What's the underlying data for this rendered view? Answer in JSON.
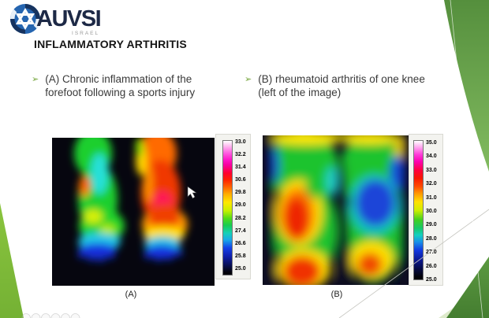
{
  "logo": {
    "brand": "AUVSI",
    "country": "ISRAEL",
    "star": "✡"
  },
  "title": "INFLAMMATORY ARTHRITIS",
  "bullet_marker": "➢",
  "bullets": [
    {
      "label": "(A) Chronic inflammation of the forefoot following a sports injury"
    },
    {
      "label": "(B) rheumatoid arthritis of one knee (left of the image)"
    }
  ],
  "figures": [
    {
      "caption": "(A)",
      "colorbar_ticks": [
        "33.0",
        "32.2",
        "31.4",
        "30.6",
        "29.8",
        "29.0",
        "28.2",
        "27.4",
        "26.6",
        "25.8",
        "25.0"
      ]
    },
    {
      "caption": "(B)",
      "colorbar_ticks": [
        "35.0",
        "34.0",
        "33.0",
        "32.0",
        "31.0",
        "30.0",
        "29.0",
        "28.0",
        "27.0",
        "26.0",
        "25.0"
      ]
    }
  ],
  "chart_data": [
    {
      "type": "heatmap",
      "title": "(A) thermal image of both forefeet",
      "scale_range": [
        25.0,
        33.0
      ],
      "scale_ticks": [
        33.0,
        32.2,
        31.4,
        30.6,
        29.8,
        29.0,
        28.2,
        27.4,
        26.6,
        25.8,
        25.0
      ],
      "annotations": "left foot cool (green/cyan ~27-29), right foot inflamed (red/orange ~30-32 with hot spot ~32), toes cold (blue ~25-26), black background"
    },
    {
      "type": "heatmap",
      "title": "(B) thermal image of both knees",
      "scale_range": [
        25.0,
        35.0
      ],
      "scale_ticks": [
        35.0,
        34.0,
        33.0,
        32.0,
        31.0,
        30.0,
        29.0,
        28.0,
        27.0,
        26.0,
        25.0
      ],
      "annotations": "left knee inflamed (red/orange ~31-32 with yellow halo), right knee cool (blue ~26-27 within green ~29), warm calves at bottom, dark background"
    }
  ],
  "colors": {
    "accent_green_dark": "#558f3d",
    "accent_green_light": "#8ac43e",
    "accent_green_pale": "#d9e8c4",
    "logo_blue": "#2565b0",
    "logo_navy": "#16335f",
    "bullet_green": "#74a53a"
  }
}
